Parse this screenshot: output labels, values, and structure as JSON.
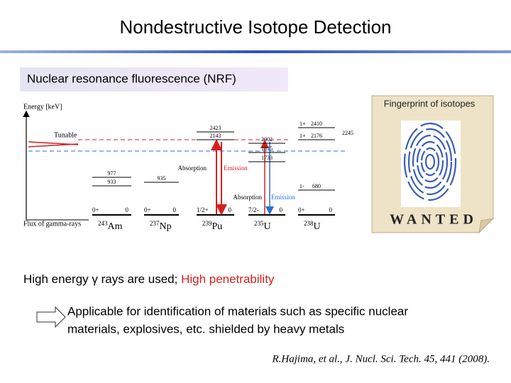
{
  "header": {
    "title": "Nondestructive Isotope Detection"
  },
  "section": {
    "title": "Nuclear resonance fluorescence (NRF)"
  },
  "diagram": {
    "axis_label": "Energy [keV]",
    "flux_label": "Flux of gamma-rays",
    "tunable_label": "Tunable",
    "isotopes": [
      {
        "mass": "243",
        "symbol": "Am",
        "ground": {
          "spin": "0+",
          "energy": 0
        },
        "levels": [
          {
            "energy": 977
          },
          {
            "energy": 933
          }
        ]
      },
      {
        "mass": "237",
        "symbol": "Np",
        "ground": {
          "spin": "0+",
          "energy": 0
        },
        "levels": [
          {
            "energy": 935
          }
        ]
      },
      {
        "mass": "239",
        "symbol": "Pu",
        "ground": {
          "spin": "1/2+",
          "energy": 0
        },
        "levels": [
          {
            "energy": 2423
          },
          {
            "energy": 2143
          }
        ]
      },
      {
        "mass": "235",
        "symbol": "U",
        "ground": {
          "spin": "7/2-",
          "energy": 0
        },
        "levels": [
          {
            "energy": 2002
          },
          {
            "energy": 1815
          },
          {
            "energy": 1733
          }
        ]
      },
      {
        "mass": "238",
        "symbol": "U",
        "ground": {
          "spin": "0+",
          "energy": 0
        },
        "levels": [
          {
            "spin": "1+",
            "energy": 2410
          },
          {
            "energy": 2245
          },
          {
            "spin": "1+",
            "energy": 2176
          },
          {
            "spin": "1-",
            "energy": 680
          }
        ]
      }
    ],
    "transitions": [
      {
        "absorption": "Absorption",
        "emission": "Emission"
      },
      {
        "absorption": "Absorption",
        "emission": "Emission"
      }
    ]
  },
  "poster": {
    "caption": "Fingerprint of isotopes",
    "banner": "WANTED"
  },
  "body": {
    "point": {
      "text": "High energy γ rays are used; ",
      "highlight": "High penetrability"
    },
    "application": [
      "Applicable for identification of materials such as specific nuclear",
      "materials, explosives, etc.  shielded by heavy metals"
    ],
    "citation": "R.Hajima, et al., J. Nucl. Sci. Tech. 45, 441 (2008)."
  }
}
